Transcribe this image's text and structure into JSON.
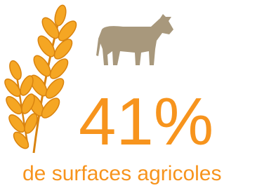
{
  "stat": {
    "value": "41%",
    "caption": "de surfaces agricoles"
  }
}
